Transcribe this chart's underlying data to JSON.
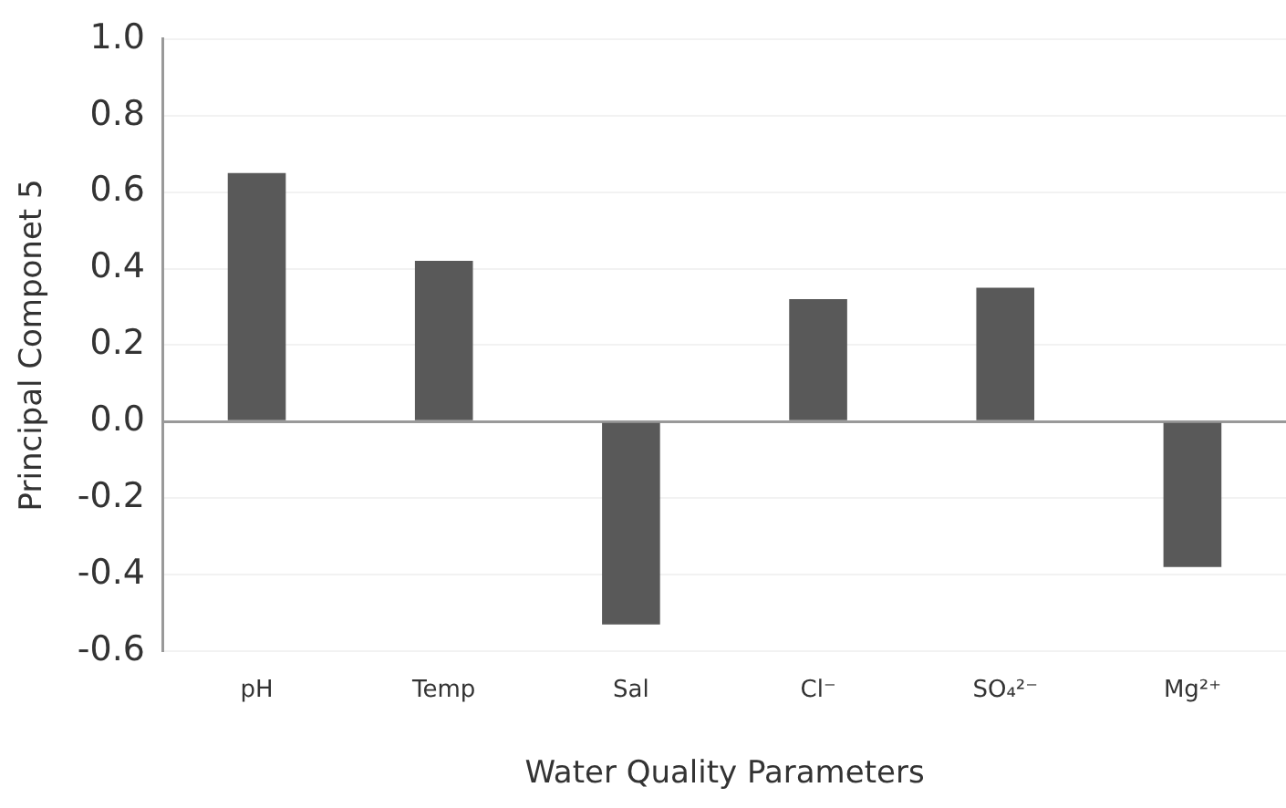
{
  "chart_data": {
    "type": "bar",
    "xlabel": "Water Quality Parameters",
    "ylabel": "Principal Componet 5",
    "categories": [
      "pH",
      "Temp",
      "Sal",
      "Cl⁻",
      "SO₄²⁻",
      "Mg²⁺"
    ],
    "values": [
      0.65,
      0.42,
      -0.53,
      0.32,
      0.35,
      -0.38
    ],
    "color": "#595959",
    "ylim": [
      -0.6,
      1.0
    ],
    "yticks": [
      -0.6,
      -0.4,
      -0.2,
      {
        "value": 0,
        "label": "0.0"
      },
      0.2,
      0.4,
      0.6,
      0.8,
      {
        "value": 1,
        "label": "1.0"
      }
    ],
    "grid": "y",
    "legend": false
  }
}
